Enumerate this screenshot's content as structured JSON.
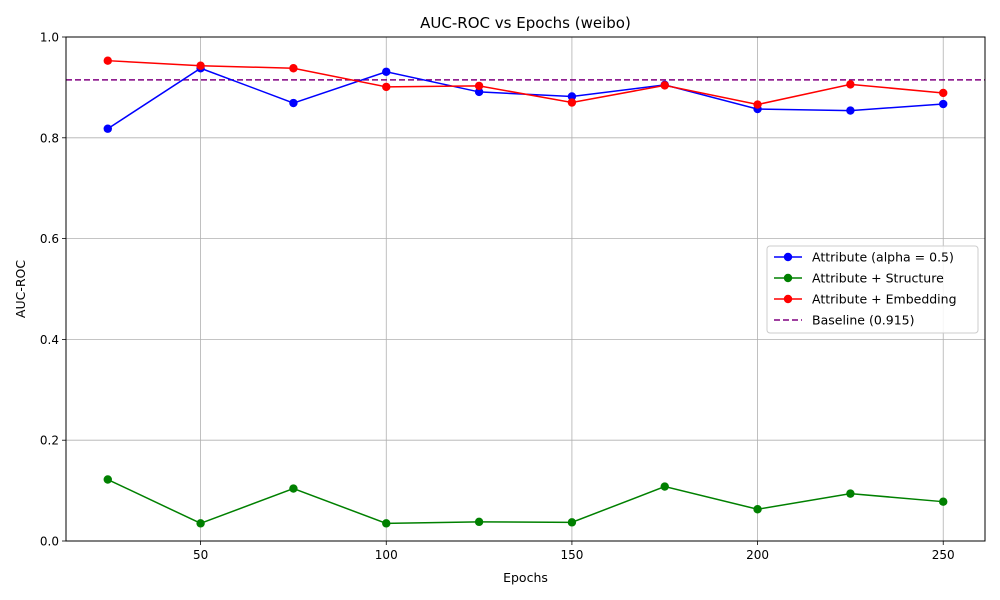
{
  "chart_data": {
    "type": "line",
    "title": "AUC-ROC vs Epochs (weibo)",
    "xlabel": "Epochs",
    "ylabel": "AUC-ROC",
    "x": [
      25,
      50,
      75,
      100,
      125,
      150,
      175,
      200,
      225,
      250
    ],
    "xlim": [
      13.75,
      261.25
    ],
    "ylim": [
      0,
      1.0
    ],
    "xticks": [
      50,
      100,
      150,
      200,
      250
    ],
    "xtick_labels": [
      "50",
      "100",
      "150",
      "200",
      "250"
    ],
    "yticks": [
      0,
      0.2,
      0.4,
      0.6,
      0.8,
      1.0
    ],
    "ytick_labels": [
      "0.0",
      "0.2",
      "0.4",
      "0.6",
      "0.8",
      "1.0"
    ],
    "grid": true,
    "legend_position": "center-right",
    "series": [
      {
        "name": "Attribute (alpha = 0.5)",
        "color": "#0000ff",
        "style": "solid-marker",
        "values": [
          0.818,
          0.938,
          0.869,
          0.931,
          0.891,
          0.882,
          0.905,
          0.857,
          0.854,
          0.867
        ]
      },
      {
        "name": "Attribute + Structure",
        "color": "#008000",
        "style": "solid-marker",
        "values": [
          0.122,
          0.035,
          0.104,
          0.035,
          0.038,
          0.037,
          0.108,
          0.063,
          0.094,
          0.078
        ]
      },
      {
        "name": "Attribute + Embedding",
        "color": "#ff0000",
        "style": "solid-marker",
        "values": [
          0.953,
          0.943,
          0.938,
          0.901,
          0.903,
          0.87,
          0.904,
          0.866,
          0.906,
          0.889
        ]
      }
    ],
    "reference_lines": [
      {
        "name": "Baseline (0.915)",
        "color": "#800080",
        "style": "dashed",
        "y": 0.915
      }
    ]
  }
}
